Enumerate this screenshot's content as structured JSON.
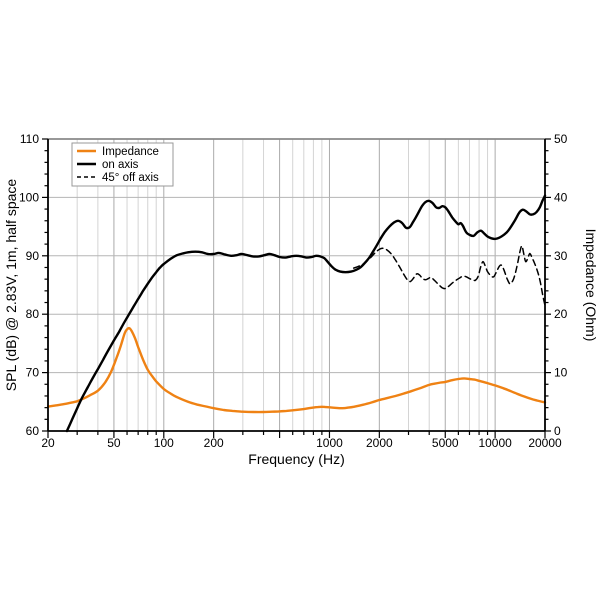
{
  "figure": {
    "background": "#ffffff",
    "frame": {
      "top_border_color": "#8a8a8a",
      "axis_color": "#000000"
    },
    "grid": {
      "major_color": "#ababab",
      "minor_color": "#d4d4d4",
      "horizontal_color": "#b5b5b5"
    },
    "legend": {
      "position": "top-left",
      "entries": [
        {
          "label": "Impedance",
          "color": "#ef8214",
          "style": "solid"
        },
        {
          "label": "on axis",
          "color": "#000000",
          "style": "solid"
        },
        {
          "label": "45° off axis",
          "color": "#000000",
          "style": "dashed"
        }
      ]
    }
  },
  "chart_data": {
    "type": "line",
    "title": "",
    "xlabel": "Frequency (Hz)",
    "ylabel_left": "SPL (dB) @ 2.83V, 1m, half space",
    "ylabel_right": "Impedance (Ohm)",
    "x_scale": "log",
    "xlim": [
      20,
      20000
    ],
    "ylim_left": [
      60,
      110
    ],
    "ylim_right": [
      0,
      50
    ],
    "x_major_ticks": [
      20,
      50,
      100,
      200,
      500,
      1000,
      2000,
      5000,
      10000,
      20000
    ],
    "x_labeled_ticks": [
      20,
      50,
      100,
      200,
      1000,
      2000,
      5000,
      10000,
      20000
    ],
    "x_minor_mantissas": [
      3,
      4,
      6,
      7,
      8,
      9
    ],
    "y_left_tick_labels": [
      "60",
      "70",
      "80",
      "90",
      "100",
      "110"
    ],
    "y_left_major_step": 10,
    "y_left_minor_step": 2,
    "y_right_tick_labels": [
      "0",
      "10",
      "20",
      "30",
      "40",
      "50"
    ],
    "y_right_major_step": 10,
    "y_right_minor_step": 2,
    "grid": "on",
    "legend_position": "upper-left",
    "series": [
      {
        "name": "Impedance",
        "axis": "right",
        "unit": "Ohm",
        "color": "#ef8214",
        "style": "solid",
        "width": 2.4,
        "points": [
          [
            20,
            4.2
          ],
          [
            22,
            4.35
          ],
          [
            25,
            4.6
          ],
          [
            28,
            4.9
          ],
          [
            30,
            5.1
          ],
          [
            33,
            5.6
          ],
          [
            36,
            6.15
          ],
          [
            40,
            6.9
          ],
          [
            44,
            8.2
          ],
          [
            48,
            10.1
          ],
          [
            52,
            12.6
          ],
          [
            55,
            14.6
          ],
          [
            58,
            16.7
          ],
          [
            60,
            17.4
          ],
          [
            62,
            17.6
          ],
          [
            64,
            17.1
          ],
          [
            67,
            15.9
          ],
          [
            70,
            14.4
          ],
          [
            75,
            12.2
          ],
          [
            80,
            10.5
          ],
          [
            85,
            9.4
          ],
          [
            90,
            8.5
          ],
          [
            100,
            7.2
          ],
          [
            110,
            6.4
          ],
          [
            120,
            5.8
          ],
          [
            140,
            5.0
          ],
          [
            160,
            4.5
          ],
          [
            180,
            4.2
          ],
          [
            200,
            3.9
          ],
          [
            230,
            3.6
          ],
          [
            260,
            3.45
          ],
          [
            300,
            3.3
          ],
          [
            350,
            3.25
          ],
          [
            400,
            3.25
          ],
          [
            450,
            3.3
          ],
          [
            500,
            3.35
          ],
          [
            550,
            3.45
          ],
          [
            600,
            3.55
          ],
          [
            650,
            3.65
          ],
          [
            700,
            3.75
          ],
          [
            750,
            3.9
          ],
          [
            800,
            4.0
          ],
          [
            850,
            4.1
          ],
          [
            900,
            4.15
          ],
          [
            950,
            4.1
          ],
          [
            1000,
            4.05
          ],
          [
            1100,
            3.95
          ],
          [
            1200,
            3.9
          ],
          [
            1300,
            4.0
          ],
          [
            1400,
            4.15
          ],
          [
            1600,
            4.5
          ],
          [
            1800,
            4.9
          ],
          [
            2000,
            5.3
          ],
          [
            2200,
            5.6
          ],
          [
            2500,
            6.0
          ],
          [
            2800,
            6.4
          ],
          [
            3100,
            6.8
          ],
          [
            3500,
            7.3
          ],
          [
            4000,
            7.9
          ],
          [
            4300,
            8.1
          ],
          [
            4700,
            8.3
          ],
          [
            5000,
            8.4
          ],
          [
            5500,
            8.7
          ],
          [
            6000,
            8.9
          ],
          [
            6500,
            9.0
          ],
          [
            7000,
            8.9
          ],
          [
            7500,
            8.8
          ],
          [
            8000,
            8.6
          ],
          [
            9000,
            8.2
          ],
          [
            10000,
            7.8
          ],
          [
            11000,
            7.4
          ],
          [
            12000,
            7.0
          ],
          [
            13500,
            6.4
          ],
          [
            15000,
            5.9
          ],
          [
            16500,
            5.5
          ],
          [
            18000,
            5.2
          ],
          [
            20000,
            4.9
          ]
        ]
      },
      {
        "name": "on axis",
        "axis": "left",
        "unit": "dB",
        "color": "#000000",
        "style": "solid",
        "width": 2.4,
        "points": [
          [
            26,
            60.0
          ],
          [
            28,
            62.0
          ],
          [
            30,
            63.9
          ],
          [
            32,
            65.6
          ],
          [
            34,
            67.0
          ],
          [
            36,
            68.3
          ],
          [
            38,
            69.5
          ],
          [
            40,
            70.6
          ],
          [
            43,
            72.2
          ],
          [
            46,
            73.7
          ],
          [
            50,
            75.5
          ],
          [
            54,
            77.1
          ],
          [
            58,
            78.7
          ],
          [
            62,
            80.1
          ],
          [
            66,
            81.4
          ],
          [
            70,
            82.6
          ],
          [
            75,
            84.0
          ],
          [
            80,
            85.2
          ],
          [
            85,
            86.3
          ],
          [
            90,
            87.2
          ],
          [
            95,
            88.0
          ],
          [
            100,
            88.6
          ],
          [
            110,
            89.5
          ],
          [
            120,
            90.1
          ],
          [
            130,
            90.4
          ],
          [
            140,
            90.6
          ],
          [
            155,
            90.7
          ],
          [
            170,
            90.6
          ],
          [
            185,
            90.3
          ],
          [
            200,
            90.3
          ],
          [
            215,
            90.5
          ],
          [
            235,
            90.2
          ],
          [
            255,
            90.0
          ],
          [
            275,
            90.1
          ],
          [
            295,
            90.3
          ],
          [
            320,
            90.1
          ],
          [
            345,
            89.9
          ],
          [
            375,
            89.9
          ],
          [
            405,
            90.1
          ],
          [
            435,
            90.3
          ],
          [
            465,
            90.1
          ],
          [
            500,
            89.8
          ],
          [
            540,
            89.7
          ],
          [
            585,
            89.9
          ],
          [
            630,
            90.0
          ],
          [
            680,
            89.9
          ],
          [
            730,
            89.7
          ],
          [
            780,
            89.8
          ],
          [
            830,
            90.0
          ],
          [
            880,
            89.9
          ],
          [
            930,
            89.6
          ],
          [
            980,
            88.9
          ],
          [
            1030,
            88.2
          ],
          [
            1090,
            87.6
          ],
          [
            1160,
            87.3
          ],
          [
            1250,
            87.2
          ],
          [
            1350,
            87.3
          ],
          [
            1450,
            87.6
          ],
          [
            1550,
            88.1
          ],
          [
            1650,
            88.9
          ],
          [
            1750,
            89.8
          ],
          [
            1850,
            90.9
          ],
          [
            1950,
            92.0
          ],
          [
            2050,
            93.1
          ],
          [
            2150,
            94.0
          ],
          [
            2300,
            95.0
          ],
          [
            2450,
            95.7
          ],
          [
            2600,
            96.0
          ],
          [
            2750,
            95.6
          ],
          [
            2900,
            94.8
          ],
          [
            3050,
            94.9
          ],
          [
            3200,
            95.8
          ],
          [
            3400,
            97.1
          ],
          [
            3600,
            98.4
          ],
          [
            3800,
            99.2
          ],
          [
            4000,
            99.4
          ],
          [
            4200,
            99.0
          ],
          [
            4400,
            98.3
          ],
          [
            4600,
            98.2
          ],
          [
            4800,
            98.5
          ],
          [
            5000,
            98.3
          ],
          [
            5200,
            97.7
          ],
          [
            5500,
            96.6
          ],
          [
            5800,
            95.8
          ],
          [
            6000,
            95.4
          ],
          [
            6200,
            95.6
          ],
          [
            6400,
            95.1
          ],
          [
            6700,
            94.0
          ],
          [
            7000,
            93.6
          ],
          [
            7400,
            93.4
          ],
          [
            7800,
            94.0
          ],
          [
            8200,
            94.3
          ],
          [
            8600,
            93.8
          ],
          [
            9000,
            93.3
          ],
          [
            9500,
            93.0
          ],
          [
            10000,
            92.9
          ],
          [
            10600,
            93.1
          ],
          [
            11300,
            93.6
          ],
          [
            12000,
            94.3
          ],
          [
            13000,
            95.8
          ],
          [
            14000,
            97.4
          ],
          [
            14700,
            97.9
          ],
          [
            15400,
            97.6
          ],
          [
            16200,
            97.1
          ],
          [
            17000,
            97.1
          ],
          [
            17800,
            97.5
          ],
          [
            18600,
            98.3
          ],
          [
            19300,
            99.4
          ],
          [
            20000,
            100.3
          ]
        ]
      },
      {
        "name": "45° off axis",
        "axis": "left",
        "unit": "dB",
        "color": "#000000",
        "style": "dashed",
        "width": 1.5,
        "points": [
          [
            1400,
            87.9
          ],
          [
            1500,
            88.2
          ],
          [
            1600,
            88.6
          ],
          [
            1700,
            89.2
          ],
          [
            1800,
            89.9
          ],
          [
            1900,
            90.6
          ],
          [
            2000,
            91.1
          ],
          [
            2100,
            91.3
          ],
          [
            2200,
            91.1
          ],
          [
            2350,
            90.4
          ],
          [
            2500,
            89.3
          ],
          [
            2650,
            88.1
          ],
          [
            2800,
            86.9
          ],
          [
            2950,
            85.9
          ],
          [
            3080,
            85.6
          ],
          [
            3220,
            86.2
          ],
          [
            3360,
            86.9
          ],
          [
            3500,
            86.7
          ],
          [
            3650,
            86.1
          ],
          [
            3800,
            85.9
          ],
          [
            3950,
            86.1
          ],
          [
            4100,
            86.3
          ],
          [
            4300,
            85.8
          ],
          [
            4550,
            85.1
          ],
          [
            4800,
            84.5
          ],
          [
            5000,
            84.4
          ],
          [
            5200,
            84.7
          ],
          [
            5500,
            85.3
          ],
          [
            5800,
            85.8
          ],
          [
            6100,
            86.2
          ],
          [
            6400,
            86.5
          ],
          [
            6700,
            86.4
          ],
          [
            7000,
            86.1
          ],
          [
            7300,
            85.9
          ],
          [
            7600,
            85.8
          ],
          [
            7900,
            86.5
          ],
          [
            8200,
            88.2
          ],
          [
            8450,
            89.0
          ],
          [
            8700,
            88.3
          ],
          [
            9000,
            87.3
          ],
          [
            9400,
            86.6
          ],
          [
            9800,
            86.4
          ],
          [
            10200,
            87.3
          ],
          [
            10600,
            88.2
          ],
          [
            10900,
            88.4
          ],
          [
            11300,
            87.6
          ],
          [
            11800,
            86.1
          ],
          [
            12300,
            85.2
          ],
          [
            12900,
            86.0
          ],
          [
            13500,
            88.0
          ],
          [
            14100,
            90.6
          ],
          [
            14500,
            91.7
          ],
          [
            14900,
            90.3
          ],
          [
            15300,
            89.0
          ],
          [
            15800,
            89.7
          ],
          [
            16200,
            90.4
          ],
          [
            16700,
            89.7
          ],
          [
            17300,
            88.7
          ],
          [
            18000,
            87.4
          ],
          [
            18700,
            85.6
          ],
          [
            19400,
            83.2
          ],
          [
            20000,
            81.5
          ]
        ]
      }
    ]
  }
}
